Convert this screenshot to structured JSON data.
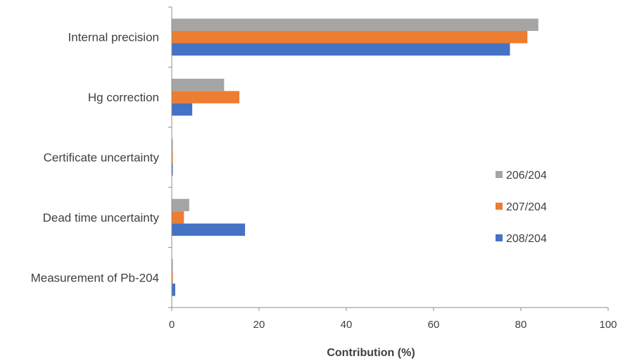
{
  "chart_data": {
    "type": "bar",
    "orientation": "horizontal",
    "categories": [
      "Internal precision",
      "Hg correction",
      "Certificate uncertainty",
      "Dead time uncertainty",
      "Measurement of Pb-204"
    ],
    "series": [
      {
        "name": "206/204",
        "color": "#a5a5a5",
        "values": [
          84.0,
          12.0,
          0.1,
          4.0,
          0.1
        ]
      },
      {
        "name": "207/204",
        "color": "#ed7d31",
        "values": [
          81.5,
          15.5,
          0.1,
          2.8,
          0.1
        ]
      },
      {
        "name": "208/204",
        "color": "#4472c4",
        "values": [
          77.5,
          4.7,
          0.2,
          16.8,
          0.8
        ]
      }
    ],
    "xlabel": "Contribution (%)",
    "ylabel": "",
    "xlim": [
      0,
      100
    ],
    "xticks": [
      0,
      20,
      40,
      60,
      80,
      100
    ],
    "grid": false,
    "legend": {
      "placement": "right",
      "order": [
        "206/204",
        "207/204",
        "208/204"
      ]
    }
  }
}
